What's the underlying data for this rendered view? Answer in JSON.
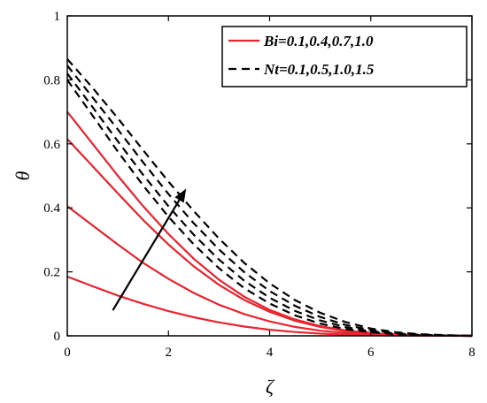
{
  "chart_data": {
    "type": "line",
    "xlabel": "ζ",
    "ylabel": "θ",
    "xlim": [
      0,
      8
    ],
    "ylim": [
      0,
      1
    ],
    "xticks": [
      "0",
      "2",
      "4",
      "6",
      "8"
    ],
    "yticks": [
      "0",
      "0.2",
      "0.4",
      "0.6",
      "0.8",
      "1"
    ],
    "grid": false,
    "legend_position": "top-right",
    "legend": [
      {
        "label": "Bi=0.1,0.4,0.7,1.0",
        "style": "solid",
        "color": "#e8242e"
      },
      {
        "label": "Nt=0.1,0.5,1.0,1.5",
        "style": "dashed",
        "color": "#000000"
      }
    ],
    "arrow": {
      "from": [
        0.9,
        0.08
      ],
      "to": [
        2.35,
        0.46
      ],
      "direction": "increasing"
    },
    "series_groups": [
      {
        "group": "Bi",
        "style": "solid",
        "color": "#e8242e",
        "curves": [
          {
            "x": [
              0,
              0.5,
              1,
              1.5,
              2,
              2.5,
              3,
              3.5,
              4,
              4.5,
              5,
              5.5,
              6,
              6.5,
              7,
              7.5,
              8
            ],
            "y": [
              0.185,
              0.155,
              0.126,
              0.1,
              0.077,
              0.058,
              0.042,
              0.029,
              0.019,
              0.012,
              0.007,
              0.004,
              0.002,
              0.001,
              0.0005,
              0.0002,
              0
            ]
          },
          {
            "x": [
              0,
              0.5,
              1,
              1.5,
              2,
              2.5,
              3,
              3.5,
              4,
              4.5,
              5,
              5.5,
              6,
              6.5,
              7,
              7.5,
              8
            ],
            "y": [
              0.405,
              0.345,
              0.285,
              0.228,
              0.178,
              0.134,
              0.097,
              0.068,
              0.045,
              0.028,
              0.016,
              0.009,
              0.005,
              0.002,
              0.001,
              0.0004,
              0
            ]
          },
          {
            "x": [
              0,
              0.5,
              1,
              1.5,
              2,
              2.5,
              3,
              3.5,
              4,
              4.5,
              5,
              5.5,
              6,
              6.5,
              7,
              7.5,
              8
            ],
            "y": [
              0.615,
              0.53,
              0.445,
              0.362,
              0.285,
              0.217,
              0.159,
              0.112,
              0.075,
              0.047,
              0.028,
              0.015,
              0.008,
              0.004,
              0.002,
              0.0007,
              0
            ]
          },
          {
            "x": [
              0,
              0.5,
              1,
              1.5,
              2,
              2.5,
              3,
              3.5,
              4,
              4.5,
              5,
              5.5,
              6,
              6.5,
              7,
              7.5,
              8
            ],
            "y": [
              0.7,
              0.6,
              0.5,
              0.405,
              0.318,
              0.241,
              0.175,
              0.122,
              0.081,
              0.051,
              0.03,
              0.017,
              0.009,
              0.004,
              0.002,
              0.0008,
              0
            ]
          }
        ]
      },
      {
        "group": "Nt",
        "style": "dashed",
        "color": "#000000",
        "curves": [
          {
            "x": [
              0,
              0.5,
              1,
              1.5,
              2,
              2.5,
              3,
              3.5,
              4,
              4.5,
              5,
              5.5,
              6,
              6.5,
              7,
              7.5,
              8
            ],
            "y": [
              0.8,
              0.688,
              0.576,
              0.47,
              0.372,
              0.286,
              0.211,
              0.149,
              0.101,
              0.064,
              0.038,
              0.021,
              0.011,
              0.005,
              0.002,
              0.001,
              0
            ]
          },
          {
            "x": [
              0,
              0.5,
              1,
              1.5,
              2,
              2.5,
              3,
              3.5,
              4,
              4.5,
              5,
              5.5,
              6,
              6.5,
              7,
              7.5,
              8
            ],
            "y": [
              0.82,
              0.715,
              0.608,
              0.503,
              0.405,
              0.316,
              0.238,
              0.172,
              0.119,
              0.078,
              0.048,
              0.027,
              0.014,
              0.007,
              0.003,
              0.001,
              0
            ]
          },
          {
            "x": [
              0,
              0.5,
              1,
              1.5,
              2,
              2.5,
              3,
              3.5,
              4,
              4.5,
              5,
              5.5,
              6,
              6.5,
              7,
              7.5,
              8
            ],
            "y": [
              0.845,
              0.745,
              0.645,
              0.542,
              0.443,
              0.352,
              0.27,
              0.199,
              0.14,
              0.094,
              0.059,
              0.034,
              0.018,
              0.009,
              0.004,
              0.0015,
              0
            ]
          },
          {
            "x": [
              0,
              0.5,
              1,
              1.5,
              2,
              2.5,
              3,
              3.5,
              4,
              4.5,
              5,
              5.5,
              6,
              6.5,
              7,
              7.5,
              8
            ],
            "y": [
              0.865,
              0.775,
              0.68,
              0.58,
              0.482,
              0.39,
              0.304,
              0.228,
              0.164,
              0.112,
              0.072,
              0.043,
              0.023,
              0.011,
              0.005,
              0.002,
              0
            ]
          }
        ]
      }
    ]
  }
}
